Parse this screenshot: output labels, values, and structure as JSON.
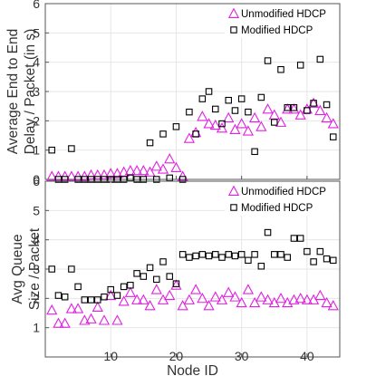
{
  "chart_data": [
    {
      "type": "scatter",
      "ylabel_lines": [
        "Average End to End",
        "Delay / Packet (in s)"
      ],
      "xlim": [
        0,
        45
      ],
      "ylim": [
        0,
        6
      ],
      "yticks": [
        0,
        1,
        2,
        3,
        4,
        5,
        6
      ],
      "xticks": [
        10,
        20,
        30,
        40
      ],
      "grid": true,
      "legend_position": "top-right",
      "series": [
        {
          "name": "Unmodified HDCP",
          "marker": "triangle",
          "color": "#e020e0",
          "x": [
            1,
            2,
            3,
            4,
            5,
            6,
            7,
            8,
            9,
            10,
            11,
            12,
            13,
            14,
            15,
            16,
            17,
            18,
            19,
            20,
            21,
            22,
            23,
            24,
            25,
            26,
            27,
            28,
            29,
            30,
            31,
            32,
            33,
            34,
            35,
            36,
            37,
            38,
            39,
            40,
            41,
            42,
            43,
            44
          ],
          "y": [
            0.1,
            0.1,
            0.1,
            0.1,
            0.1,
            0.1,
            0.15,
            0.15,
            0.15,
            0.2,
            0.2,
            0.25,
            0.3,
            0.3,
            0.3,
            0.25,
            0.45,
            0.35,
            0.7,
            0.4,
            0.1,
            1.4,
            1.6,
            2.15,
            1.9,
            1.85,
            1.75,
            2.1,
            1.7,
            1.9,
            1.65,
            2.1,
            1.8,
            2.4,
            2.2,
            1.95,
            2.4,
            2.4,
            2.2,
            2.4,
            2.6,
            2.35,
            2.1,
            1.9
          ]
        },
        {
          "name": "Modified HDCP",
          "marker": "square",
          "color": "#000000",
          "x": [
            1,
            2,
            3,
            4,
            5,
            6,
            7,
            8,
            9,
            10,
            11,
            12,
            13,
            14,
            15,
            16,
            17,
            18,
            19,
            20,
            21,
            22,
            23,
            24,
            25,
            26,
            27,
            28,
            29,
            30,
            31,
            32,
            33,
            34,
            35,
            36,
            37,
            38,
            39,
            40,
            41,
            42,
            43,
            44
          ],
          "y": [
            1.0,
            0.0,
            0.0,
            1.05,
            0.0,
            0.0,
            0.0,
            0.0,
            0.0,
            0.0,
            0.0,
            0.0,
            0.05,
            0.0,
            0.0,
            1.25,
            0.0,
            1.55,
            0.05,
            1.8,
            0.0,
            2.3,
            1.55,
            2.75,
            3.0,
            2.4,
            1.9,
            2.7,
            2.35,
            2.75,
            2.3,
            0.95,
            2.8,
            4.05,
            1.95,
            3.75,
            2.45,
            2.45,
            3.9,
            2.35,
            2.6,
            4.1,
            2.55,
            1.45
          ]
        }
      ]
    },
    {
      "type": "scatter",
      "ylabel_lines": [
        "Avg Queue",
        "Size / Packet"
      ],
      "xlabel": "Node ID",
      "xlim": [
        0,
        45
      ],
      "ylim": [
        0,
        6
      ],
      "yticks": [
        1,
        2,
        3,
        4,
        5,
        6
      ],
      "xticks": [
        10,
        20,
        30,
        40
      ],
      "grid": true,
      "legend_position": "top-right",
      "series": [
        {
          "name": "Unmodified HDCP",
          "marker": "triangle",
          "color": "#e020e0",
          "x": [
            1,
            2,
            3,
            4,
            5,
            6,
            7,
            8,
            9,
            10,
            11,
            12,
            13,
            14,
            15,
            16,
            17,
            18,
            19,
            20,
            21,
            22,
            23,
            24,
            25,
            26,
            27,
            28,
            29,
            30,
            31,
            32,
            33,
            34,
            35,
            36,
            37,
            38,
            39,
            40,
            41,
            42,
            43,
            44
          ],
          "y": [
            1.6,
            1.15,
            1.15,
            1.65,
            1.65,
            1.25,
            1.3,
            1.7,
            1.25,
            2.1,
            1.25,
            1.9,
            2.2,
            1.95,
            1.95,
            1.75,
            2.3,
            1.95,
            2.1,
            2.45,
            1.75,
            1.95,
            2.3,
            2.0,
            1.75,
            2.05,
            1.95,
            2.2,
            2.05,
            1.85,
            2.3,
            1.85,
            2.05,
            1.95,
            1.85,
            2.0,
            1.85,
            1.95,
            2.0,
            1.95,
            1.95,
            2.1,
            1.85,
            1.75
          ]
        },
        {
          "name": "Modified HDCP",
          "marker": "square",
          "color": "#000000",
          "x": [
            1,
            2,
            3,
            4,
            5,
            6,
            7,
            8,
            9,
            10,
            11,
            12,
            13,
            14,
            15,
            16,
            17,
            18,
            19,
            20,
            21,
            22,
            23,
            24,
            25,
            26,
            27,
            28,
            29,
            30,
            31,
            32,
            33,
            34,
            35,
            36,
            37,
            38,
            39,
            40,
            41,
            42,
            43,
            44
          ],
          "y": [
            3.0,
            2.1,
            2.05,
            3.0,
            2.4,
            1.95,
            1.95,
            1.95,
            2.05,
            2.3,
            2.1,
            2.4,
            2.45,
            2.85,
            2.75,
            3.05,
            2.65,
            3.25,
            2.75,
            2.5,
            3.5,
            3.4,
            3.45,
            3.5,
            3.45,
            3.5,
            3.4,
            3.5,
            3.45,
            3.5,
            3.3,
            3.5,
            3.1,
            4.25,
            3.5,
            3.5,
            3.4,
            4.05,
            4.05,
            3.6,
            3.25,
            3.6,
            3.35,
            3.3
          ]
        }
      ]
    }
  ]
}
